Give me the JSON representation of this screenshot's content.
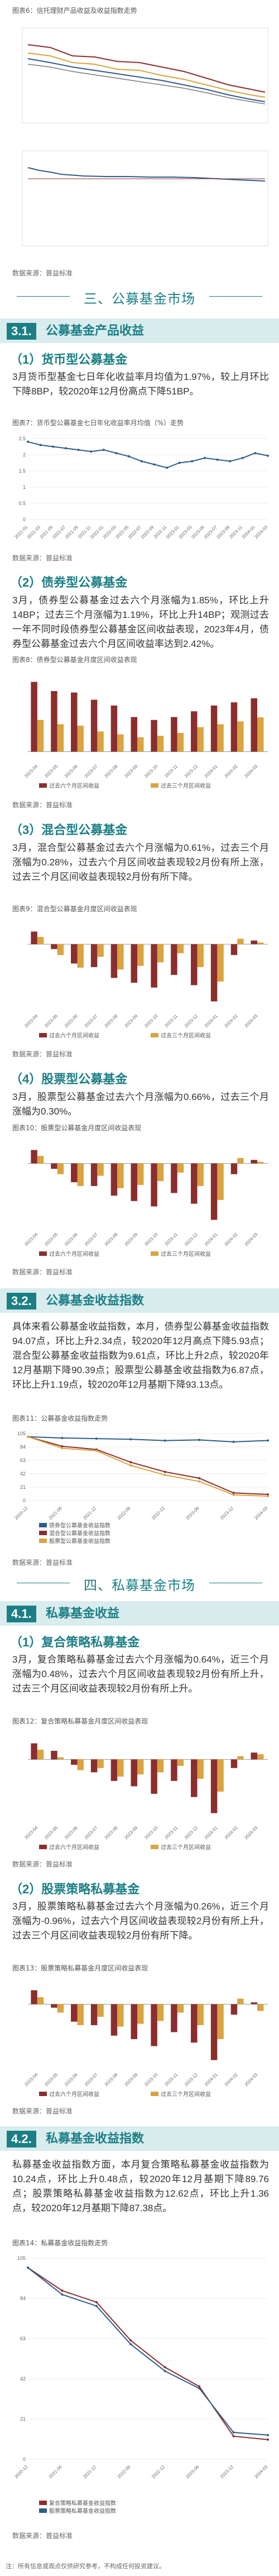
{
  "figures": {
    "f6": {
      "title": "图表6：信托理财产品收益及收益指数走势"
    },
    "f7": {
      "title": "图表7：货币型公募基金七日年化收益率月均值（%）走势"
    },
    "f8": {
      "title": "图表8：债券型公募基金月度区间收益表现"
    },
    "f9": {
      "title": "图表9：混合型公募基金月度区间收益表现"
    },
    "f10": {
      "title": "图表10：股票型公募基金月度区间收益表现"
    },
    "f11": {
      "title": "图表11：公募基金收益指数走势"
    },
    "f12": {
      "title": "图表12：复合策略私募基金月度区间收益表现"
    },
    "f13": {
      "title": "图表13：股票策略私募基金月度区间收益表现"
    },
    "f14": {
      "title": "图表14：私募基金收益指数走势"
    }
  },
  "source": "数据来源：普益标准",
  "sections": {
    "s3": {
      "label": "三、公募基金市场"
    },
    "s4": {
      "label": "四、私募基金市场"
    }
  },
  "bands": {
    "b31": {
      "num": "3.1.",
      "text": "公募基金产品收益"
    },
    "b32": {
      "num": "3.2.",
      "text": "公募基金收益指数"
    },
    "b41": {
      "num": "4.1.",
      "text": "私募基金收益"
    },
    "b42": {
      "num": "4.2.",
      "text": "私募基金收益指数"
    }
  },
  "subs": {
    "m1": "（1）货币型公募基金",
    "m2": "（2）债券型公募基金",
    "m3": "（3）混合型公募基金",
    "m4": "（4）股票型公募基金",
    "p1": "（1）复合策略私募基金",
    "p2": "（2）股票策略私募基金"
  },
  "paras": {
    "money": "3月货币型基金七日年化收益率月均值为1.97%，较上月环比下降8BP，较2020年12月份高点下降51BP。",
    "bond": "3月，债券型公募基金过去六个月涨幅为1.85%，环比上升14BP；过去三个月涨幅为1.19%，环比上升14BP；观测过去一年不同时段债券型公募基金区间收益表现，2023年4月，债券型公募基金过去六个月区间收益率达到2.42%。",
    "mixed": "3月，混合型公募基金过去六个月涨幅为0.61%，过去三个月涨幅为0.28%，过去六个月区间收益表现较2月份有所上涨，过去三个月区间收益表现较2月份有所下降。",
    "stock": "3月，股票型公募基金过去六个月涨幅为0.66%，过去三个月涨幅为0.30%。",
    "index": "具体来看公募基金收益指数，本月，债券型公募基金收益指数94.07点，环比上升2.34点，较2020年12月高点下降5.93点；混合型公募基金收益指数为9.61点，环比上升2点，较2020年12月基期下降90.39点；股票型公募基金收益指数为6.87点，环比上升1.19点，较2020年12月基期下降93.13点。",
    "composite": "3月，复合策略私募基金过去六个月涨幅为0.64%，近三个月涨幅为0.48%，过去六个月区间收益表现较2月份有所上升，过去三个月区间收益表现较2月份有所上升。",
    "stockpriv": "3月，股票策略私募基金过去六个月涨幅为0.26%，近三个月涨幅为-0.96%，过去六个月区间收益表现较2月份有所上升，过去三个月区间收益表现较2月份有所下降。",
    "privindex": "私募基金收益指数方面，本月复合策略私募基金收益指数为10.24点，环比上升0.48点，较2020年12月基期下降89.76点；股票策略私募基金收益指数为12.62点，环比上升1.36点，较2020年12月基期下降87.38点。"
  },
  "legends": {
    "six": "过去六个月区间收益",
    "three": "过去三个月区间收益",
    "bondidx": "债券型公募基金收益指数",
    "mixidx": "混合型公募基金收益指数",
    "stkidx": "股票型公募基金收益指数",
    "compidx": "复合策略私募基金收益指数",
    "stkprividx": "股票策略私募基金收益指数"
  },
  "footer": "注：所有信息或观点仅供研究参考，不构成任何投资建议。",
  "chart_data": [
    {
      "type": "line",
      "id": "f7",
      "x": [
        "2021-01",
        "2021-03",
        "2021-05",
        "2021-07",
        "2021-09",
        "2021-11",
        "2022-01",
        "2022-03",
        "2022-05",
        "2022-07",
        "2022-09",
        "2022-11",
        "2023-01",
        "2023-03",
        "2023-05",
        "2023-07",
        "2023-09",
        "2023-11",
        "2024-01",
        "2024-03"
      ],
      "series": [
        {
          "values": [
            2.4,
            2.3,
            2.25,
            2.2,
            2.15,
            2.1,
            2.15,
            2.05,
            1.95,
            1.8,
            1.7,
            1.6,
            1.75,
            1.8,
            1.9,
            1.85,
            1.8,
            1.9,
            2.05,
            1.97
          ]
        }
      ],
      "ylim": [
        0,
        2.5
      ]
    },
    {
      "type": "bar",
      "id": "f8",
      "categories": [
        "2023-04",
        "2023-05",
        "2023-06",
        "2023-07",
        "2023-08",
        "2023-09",
        "2023-10",
        "2023-11",
        "2023-12",
        "2024-01",
        "2024-02",
        "2024-03"
      ],
      "series": [
        {
          "name": "过去六个月区间收益",
          "values": [
            2.42,
            2.1,
            2.05,
            1.8,
            1.6,
            1.2,
            1.1,
            1.2,
            1.4,
            1.6,
            1.71,
            1.85
          ]
        },
        {
          "name": "过去三个月区间收益",
          "values": [
            1.1,
            0.95,
            0.9,
            0.7,
            0.6,
            0.5,
            0.55,
            0.65,
            0.85,
            0.95,
            1.05,
            1.19
          ]
        }
      ]
    },
    {
      "type": "bar",
      "id": "f9",
      "categories": [
        "2023-04",
        "2023-05",
        "2023-06",
        "2023-07",
        "2023-08",
        "2023-09",
        "2023-10",
        "2023-11",
        "2023-12",
        "2024-01",
        "2024-02",
        "2024-03"
      ],
      "series": [
        {
          "name": "过去六个月区间收益",
          "values": [
            2.1,
            -0.8,
            -3.2,
            -3.8,
            -5.6,
            -6.4,
            -7.2,
            -5.1,
            -6.8,
            -9.5,
            -1.8,
            0.61
          ]
        },
        {
          "name": "过去三个月区间收益",
          "values": [
            1.2,
            -1.8,
            -3.9,
            -2.1,
            -4.2,
            -3.6,
            -3.0,
            -1.5,
            -3.8,
            -6.2,
            0.9,
            0.28
          ]
        }
      ]
    },
    {
      "type": "bar",
      "id": "f10",
      "categories": [
        "2023-04",
        "2023-05",
        "2023-06",
        "2023-07",
        "2023-08",
        "2023-09",
        "2023-10",
        "2023-11",
        "2023-12",
        "2024-01",
        "2024-02",
        "2024-03"
      ],
      "series": [
        {
          "name": "过去六个月区间收益",
          "values": [
            2.5,
            -1.0,
            -3.5,
            -4.2,
            -6.0,
            -7.0,
            -8.0,
            -5.5,
            -7.5,
            -10.5,
            -2.0,
            0.66
          ]
        },
        {
          "name": "过去三个月区间收益",
          "values": [
            1.4,
            -2.0,
            -4.2,
            -2.3,
            -4.6,
            -4.0,
            -3.3,
            -1.7,
            -4.2,
            -6.8,
            1.0,
            0.3
          ]
        }
      ]
    },
    {
      "type": "line",
      "id": "f11",
      "x": [
        "2020-12",
        "2021-06",
        "2021-12",
        "2022-06",
        "2022-12",
        "2023-06",
        "2023-12",
        "2024-03"
      ],
      "series": [
        {
          "name": "债券型公募基金收益指数",
          "values": [
            100,
            98,
            97,
            96,
            94,
            95,
            92,
            94.07
          ]
        },
        {
          "name": "混合型公募基金收益指数",
          "values": [
            100,
            85,
            80,
            60,
            45,
            35,
            12,
            9.61
          ]
        },
        {
          "name": "股票型公募基金收益指数",
          "values": [
            100,
            82,
            78,
            55,
            40,
            30,
            9,
            6.87
          ]
        }
      ]
    },
    {
      "type": "bar",
      "id": "f12",
      "categories": [
        "2023-04",
        "2023-05",
        "2023-06",
        "2023-07",
        "2023-08",
        "2023-09",
        "2023-10",
        "2023-11",
        "2023-12",
        "2024-01",
        "2024-02",
        "2024-03"
      ],
      "series": [
        {
          "name": "过去六个月区间收益",
          "values": [
            1.5,
            0.8,
            -0.5,
            -1.2,
            -2.0,
            -2.5,
            -3.2,
            -2.0,
            -3.5,
            -5.0,
            -0.8,
            0.64
          ]
        },
        {
          "name": "过去三个月区间收益",
          "values": [
            0.9,
            0.2,
            -1.0,
            -0.8,
            -1.6,
            -1.4,
            -1.2,
            -0.6,
            -1.8,
            -3.0,
            0.3,
            0.48
          ]
        }
      ]
    },
    {
      "type": "bar",
      "id": "f13",
      "categories": [
        "2023-04",
        "2023-05",
        "2023-06",
        "2023-07",
        "2023-08",
        "2023-09",
        "2023-10",
        "2023-11",
        "2023-12",
        "2024-01",
        "2024-02",
        "2024-03"
      ],
      "series": [
        {
          "name": "过去六个月区间收益",
          "values": [
            2.0,
            -0.5,
            -2.5,
            -3.0,
            -4.5,
            -5.0,
            -6.0,
            -4.0,
            -5.5,
            -8.0,
            -1.5,
            0.26
          ]
        },
        {
          "name": "过去三个月区间收益",
          "values": [
            1.0,
            -1.2,
            -3.0,
            -1.8,
            -3.2,
            -2.8,
            -2.4,
            -1.2,
            -3.0,
            -5.0,
            0.8,
            -0.96
          ]
        }
      ]
    },
    {
      "type": "line",
      "id": "f14",
      "x": [
        "2020-12",
        "2021-06",
        "2021-12",
        "2022-06",
        "2022-12",
        "2023-06",
        "2023-12",
        "2024-03"
      ],
      "series": [
        {
          "name": "复合策略私募基金收益指数",
          "values": [
            100,
            88,
            82,
            62,
            48,
            38,
            12,
            10.24
          ]
        },
        {
          "name": "股票策略私募基金收益指数",
          "values": [
            100,
            86,
            80,
            60,
            46,
            37,
            14,
            12.62
          ]
        }
      ]
    }
  ]
}
